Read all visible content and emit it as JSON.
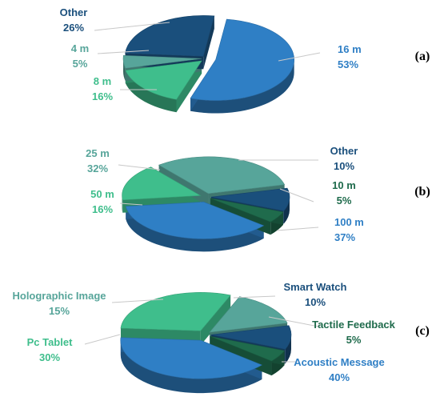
{
  "chart_data": [
    {
      "type": "pie",
      "panel_label": "(a)",
      "slices": [
        {
          "label": "16 m",
          "percent": "53%",
          "value": 53,
          "color": "#2f7fc5"
        },
        {
          "label": "8 m",
          "percent": "16%",
          "value": 16,
          "color": "#3fbe8c"
        },
        {
          "label": "4 m",
          "percent": "5%",
          "value": 5,
          "color": "#57a59a"
        },
        {
          "label": "Other",
          "percent": "26%",
          "value": 26,
          "color": "#1a4f7c"
        }
      ]
    },
    {
      "type": "pie",
      "panel_label": "(b)",
      "slices": [
        {
          "label": "100 m",
          "percent": "37%",
          "value": 37,
          "color": "#2f7fc5"
        },
        {
          "label": "50 m",
          "percent": "16%",
          "value": 16,
          "color": "#3fbe8c"
        },
        {
          "label": "25 m",
          "percent": "32%",
          "value": 32,
          "color": "#57a59a"
        },
        {
          "label": "Other",
          "percent": "10%",
          "value": 10,
          "color": "#1a4f7c"
        },
        {
          "label": "10 m",
          "percent": "5%",
          "value": 5,
          "color": "#1f6b4c"
        }
      ]
    },
    {
      "type": "pie",
      "panel_label": "(c)",
      "slices": [
        {
          "label": "Acoustic Message",
          "percent": "40%",
          "value": 40,
          "color": "#2f7fc5"
        },
        {
          "label": "Pc Tablet",
          "percent": "30%",
          "value": 30,
          "color": "#3fbe8c"
        },
        {
          "label": "Holographic Image",
          "percent": "15%",
          "value": 15,
          "color": "#57a59a"
        },
        {
          "label": "Smart Watch",
          "percent": "10%",
          "value": 10,
          "color": "#1a4f7c"
        },
        {
          "label": "Tactile Feedback",
          "percent": "5%",
          "value": 5,
          "color": "#1f6b4c"
        }
      ]
    }
  ]
}
